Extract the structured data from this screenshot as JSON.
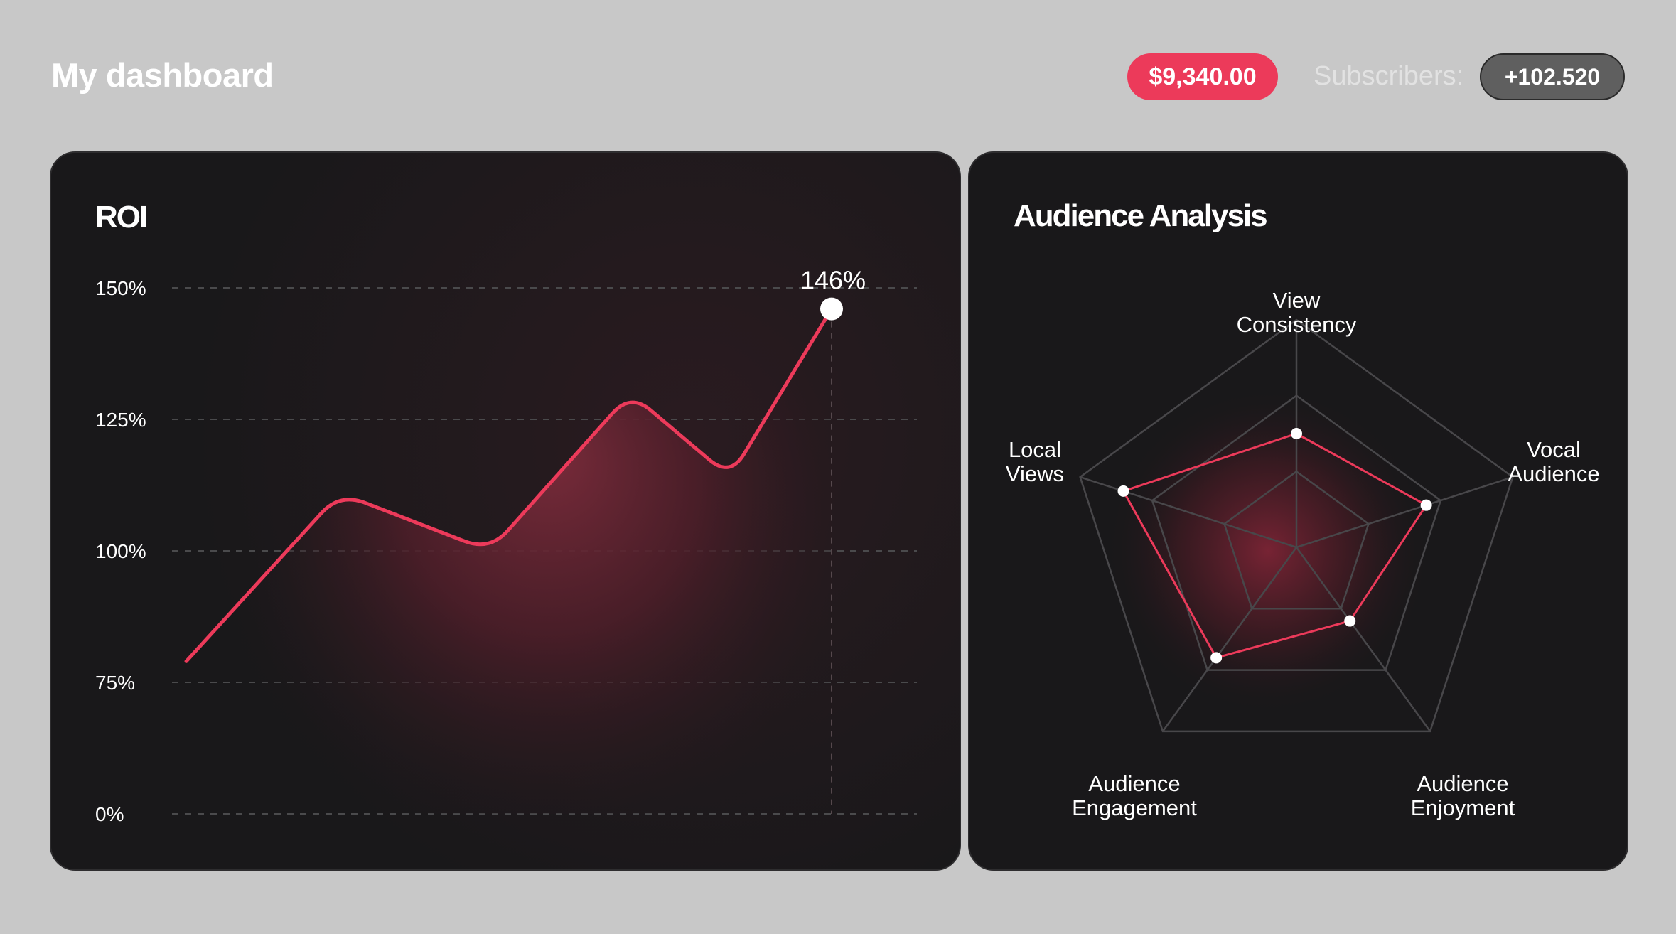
{
  "header": {
    "title": "My dashboard",
    "revenue": "$9,340.00",
    "subscribers_label": "Subscribers:",
    "subscribers_value": "+102.520"
  },
  "colors": {
    "accent": "#ec3a5a",
    "page_bg": "#c8c8c8",
    "card_bg": "#19181a",
    "badge_dark": "#5f5f5f",
    "grid": "#4a4a4c"
  },
  "chart_data": [
    {
      "type": "line",
      "title": "ROI",
      "y_tick_labels": [
        "150%",
        "125%",
        "100%",
        "75%",
        "0%"
      ],
      "x": [
        0,
        1,
        2,
        3,
        4,
        5
      ],
      "values": [
        79,
        111,
        100,
        130,
        114,
        146
      ],
      "highlight": {
        "index": 5,
        "label": "146%"
      },
      "xlabel": "",
      "ylabel": "",
      "grid": true,
      "area_fill": true
    },
    {
      "type": "radar",
      "title": "Audience Analysis",
      "axes": [
        "View Consistency",
        "Vocal Audience",
        "Audience Enjoyment",
        "Audience Engagement",
        "Local Views"
      ],
      "axis_labels": [
        [
          "View",
          "Consistency"
        ],
        [
          "Vocal",
          "Audience"
        ],
        [
          "Audience",
          "Enjoyment"
        ],
        [
          "Audience",
          "Engagement"
        ],
        [
          "Local",
          "Views"
        ]
      ],
      "values": [
        0.5,
        0.6,
        0.4,
        0.6,
        0.8
      ],
      "rings": 3
    }
  ]
}
